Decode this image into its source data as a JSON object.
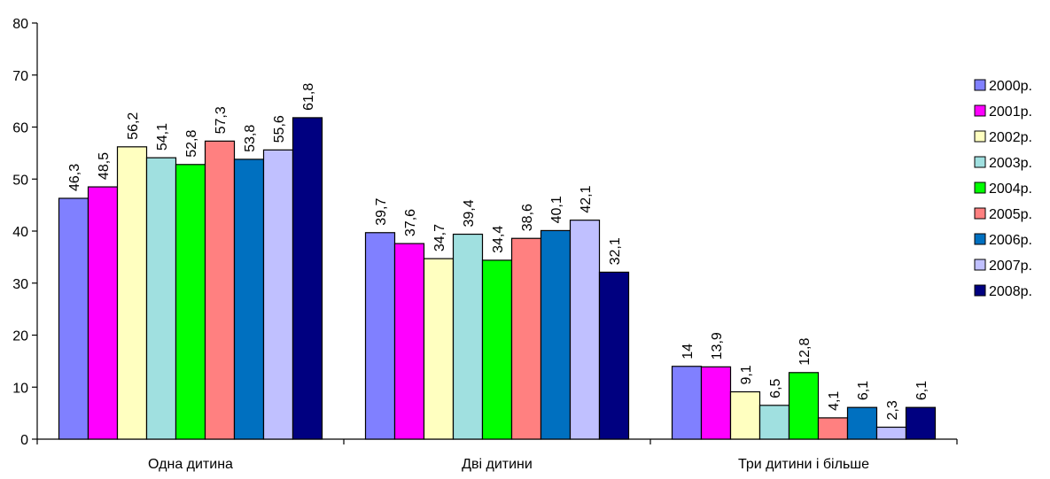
{
  "chart_data": {
    "type": "bar",
    "title": "",
    "xlabel": "",
    "ylabel": "",
    "ylim": [
      0,
      80
    ],
    "yticks": [
      0,
      10,
      20,
      30,
      40,
      50,
      60,
      70,
      80
    ],
    "grid": false,
    "legend_position": "right",
    "categories": [
      "Одна дитина",
      "Дві дитини",
      "Три дитини і більше"
    ],
    "series": [
      {
        "name": "2000р.",
        "color": "#8080FF",
        "values": [
          46.3,
          39.7,
          14
        ],
        "labels": [
          "46,3",
          "39,7",
          "14"
        ]
      },
      {
        "name": "2001р.",
        "color": "#FF00FF",
        "values": [
          48.5,
          37.6,
          13.9
        ],
        "labels": [
          "48,5",
          "37,6",
          "13,9"
        ]
      },
      {
        "name": "2002р.",
        "color": "#FFFFC0",
        "values": [
          56.2,
          34.7,
          9.1
        ],
        "labels": [
          "56,2",
          "34,7",
          "9,1"
        ]
      },
      {
        "name": "2003р.",
        "color": "#A0E0E0",
        "values": [
          54.1,
          39.4,
          6.5
        ],
        "labels": [
          "54,1",
          "39,4",
          "6,5"
        ]
      },
      {
        "name": "2004р.",
        "color": "#00FF00",
        "values": [
          52.8,
          34.4,
          12.8
        ],
        "labels": [
          "52,8",
          "34,4",
          "12,8"
        ]
      },
      {
        "name": "2005р.",
        "color": "#FF8080",
        "values": [
          57.3,
          38.6,
          4.1
        ],
        "labels": [
          "57,3",
          "38,6",
          "4,1"
        ]
      },
      {
        "name": "2006р.",
        "color": "#0070C0",
        "values": [
          53.8,
          40.1,
          6.1
        ],
        "labels": [
          "53,8",
          "40,1",
          "6,1"
        ]
      },
      {
        "name": "2007р.",
        "color": "#C0C0FF",
        "values": [
          55.6,
          42.1,
          2.3
        ],
        "labels": [
          "55,6",
          "42,1",
          "2,3"
        ]
      },
      {
        "name": "2008р.",
        "color": "#000080",
        "values": [
          61.8,
          32.1,
          6.1
        ],
        "labels": [
          "61,8",
          "32,1",
          "6,1"
        ]
      }
    ]
  }
}
